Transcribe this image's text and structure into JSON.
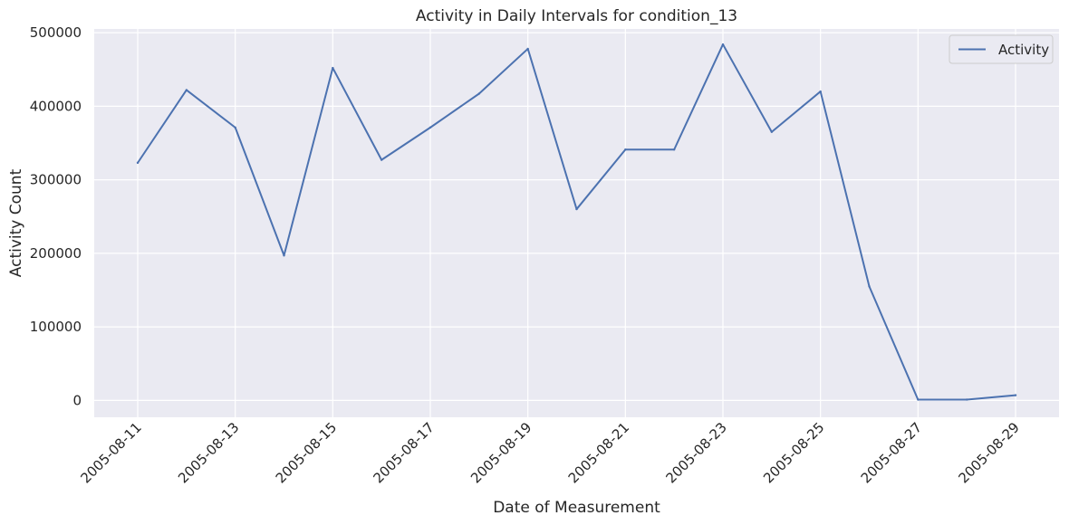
{
  "chart_data": {
    "type": "line",
    "title": "Activity in Daily Intervals for condition_13",
    "xlabel": "Date of Measurement",
    "ylabel": "Activity Count",
    "x": [
      "2005-08-11",
      "2005-08-12",
      "2005-08-13",
      "2005-08-14",
      "2005-08-15",
      "2005-08-16",
      "2005-08-17",
      "2005-08-18",
      "2005-08-19",
      "2005-08-20",
      "2005-08-21",
      "2005-08-22",
      "2005-08-23",
      "2005-08-24",
      "2005-08-25",
      "2005-08-26",
      "2005-08-27",
      "2005-08-28",
      "2005-08-29"
    ],
    "x_tick_labels": [
      "2005-08-11",
      "2005-08-13",
      "2005-08-15",
      "2005-08-17",
      "2005-08-19",
      "2005-08-21",
      "2005-08-23",
      "2005-08-25",
      "2005-08-27",
      "2005-08-29"
    ],
    "y_tick_labels": [
      "0",
      "100000",
      "200000",
      "300000",
      "400000",
      "500000"
    ],
    "ylim": [
      -23000,
      505000
    ],
    "grid": true,
    "legend_position": "upper-right",
    "series": [
      {
        "name": "Activity",
        "color": "#4c72b0",
        "values": [
          323000,
          422000,
          371000,
          197000,
          452000,
          327000,
          371000,
          417000,
          478000,
          260000,
          341000,
          341000,
          484000,
          365000,
          420000,
          155000,
          1000,
          1000,
          7000
        ]
      }
    ],
    "style": {
      "plot_background": "#eaeaf2",
      "grid_color": "#ffffff",
      "text_color": "#262626"
    }
  }
}
